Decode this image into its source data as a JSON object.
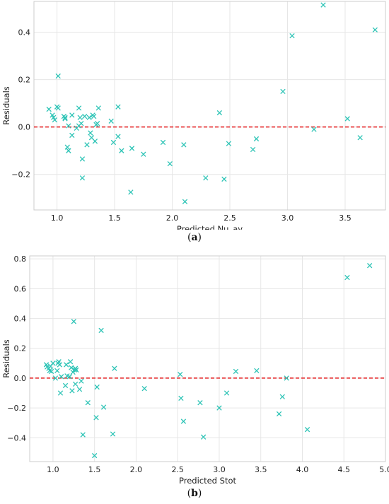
{
  "chart_data": [
    {
      "type": "scatter",
      "panel_label": "a",
      "xlabel": "Predicted Nu_av",
      "ylabel": "Residuals",
      "xlim": [
        0.8,
        3.85
      ],
      "ylim": [
        -0.35,
        0.53
      ],
      "xticks": [
        "1.0",
        "1.5",
        "2.0",
        "2.5",
        "3.0",
        "3.5"
      ],
      "xtick_values": [
        1.0,
        1.5,
        2.0,
        2.5,
        3.0,
        3.5
      ],
      "yticks": [
        "−0.2",
        "0.0",
        "0.2",
        "0.4"
      ],
      "ytick_values": [
        -0.2,
        0.0,
        0.2,
        0.4
      ],
      "grid": true,
      "marker": "x",
      "marker_color": "#2ec4b6",
      "reference_line": {
        "y": 0.0,
        "style": "dashed",
        "color": "#e31a1c"
      },
      "points": [
        [
          0.93,
          0.075
        ],
        [
          0.96,
          0.05
        ],
        [
          0.97,
          0.04
        ],
        [
          0.98,
          0.03
        ],
        [
          1.0,
          0.085
        ],
        [
          1.01,
          0.215
        ],
        [
          1.01,
          0.08
        ],
        [
          1.06,
          0.045
        ],
        [
          1.07,
          0.035
        ],
        [
          1.07,
          0.04
        ],
        [
          1.09,
          -0.085
        ],
        [
          1.1,
          -0.1
        ],
        [
          1.1,
          0.005
        ],
        [
          1.13,
          0.05
        ],
        [
          1.13,
          -0.035
        ],
        [
          1.17,
          -0.005
        ],
        [
          1.19,
          0.08
        ],
        [
          1.19,
          0.005
        ],
        [
          1.2,
          0.04
        ],
        [
          1.21,
          0.015
        ],
        [
          1.22,
          -0.215
        ],
        [
          1.22,
          -0.135
        ],
        [
          1.24,
          0.045
        ],
        [
          1.26,
          -0.075
        ],
        [
          1.28,
          0.04
        ],
        [
          1.29,
          -0.025
        ],
        [
          1.3,
          -0.045
        ],
        [
          1.31,
          0.05
        ],
        [
          1.32,
          0.045
        ],
        [
          1.33,
          -0.06
        ],
        [
          1.34,
          0.01
        ],
        [
          1.35,
          0.015
        ],
        [
          1.36,
          0.08
        ],
        [
          1.47,
          0.025
        ],
        [
          1.49,
          -0.065
        ],
        [
          1.53,
          -0.04
        ],
        [
          1.53,
          0.085
        ],
        [
          1.56,
          -0.1
        ],
        [
          1.64,
          -0.275
        ],
        [
          1.65,
          -0.09
        ],
        [
          1.75,
          -0.115
        ],
        [
          1.92,
          -0.065
        ],
        [
          1.98,
          -0.155
        ],
        [
          2.1,
          -0.075
        ],
        [
          2.11,
          -0.315
        ],
        [
          2.29,
          -0.215
        ],
        [
          2.41,
          0.06
        ],
        [
          2.45,
          -0.22
        ],
        [
          2.49,
          -0.07
        ],
        [
          2.7,
          -0.095
        ],
        [
          2.73,
          -0.05
        ],
        [
          2.96,
          0.15
        ],
        [
          3.04,
          0.385
        ],
        [
          3.23,
          -0.01
        ],
        [
          3.31,
          0.515
        ],
        [
          3.52,
          0.035
        ],
        [
          3.63,
          -0.045
        ],
        [
          3.76,
          0.41
        ]
      ]
    },
    {
      "type": "scatter",
      "panel_label": "b",
      "xlabel": "Predicted Stot",
      "ylabel": "Residuals",
      "xlim": [
        0.72,
        5.0
      ],
      "ylim": [
        -0.56,
        0.82
      ],
      "xticks": [
        "1.0",
        "1.5",
        "2.0",
        "2.5",
        "3.0",
        "3.5",
        "4.0",
        "4.5",
        "5.0"
      ],
      "xtick_values": [
        1.0,
        1.5,
        2.0,
        2.5,
        3.0,
        3.5,
        4.0,
        4.5,
        5.0
      ],
      "yticks": [
        "−0.4",
        "−0.2",
        "0.0",
        "0.2",
        "0.4",
        "0.6",
        "0.8"
      ],
      "ytick_values": [
        -0.4,
        -0.2,
        0.0,
        0.2,
        0.4,
        0.6,
        0.8
      ],
      "grid": true,
      "marker": "x",
      "marker_color": "#2ec4b6",
      "reference_line": {
        "y": 0.0,
        "style": "dashed",
        "color": "#e31a1c"
      },
      "points": [
        [
          0.92,
          0.09
        ],
        [
          0.93,
          0.075
        ],
        [
          0.95,
          0.065
        ],
        [
          0.96,
          0.05
        ],
        [
          0.97,
          0.08
        ],
        [
          0.98,
          0.045
        ],
        [
          1.0,
          0.1
        ],
        [
          1.03,
          0.0
        ],
        [
          1.05,
          0.05
        ],
        [
          1.06,
          0.1
        ],
        [
          1.07,
          0.11
        ],
        [
          1.08,
          0.09
        ],
        [
          1.09,
          -0.1
        ],
        [
          1.1,
          0.01
        ],
        [
          1.15,
          -0.05
        ],
        [
          1.16,
          0.09
        ],
        [
          1.17,
          0.015
        ],
        [
          1.2,
          0.01
        ],
        [
          1.21,
          0.11
        ],
        [
          1.22,
          0.07
        ],
        [
          1.23,
          -0.085
        ],
        [
          1.24,
          0.04
        ],
        [
          1.25,
          0.38
        ],
        [
          1.26,
          0.055
        ],
        [
          1.27,
          0.065
        ],
        [
          1.28,
          0.055
        ],
        [
          1.27,
          -0.04
        ],
        [
          1.32,
          -0.075
        ],
        [
          1.34,
          -0.02
        ],
        [
          1.36,
          -0.38
        ],
        [
          1.42,
          -0.165
        ],
        [
          1.5,
          -0.52
        ],
        [
          1.52,
          -0.265
        ],
        [
          1.53,
          -0.06
        ],
        [
          1.58,
          0.32
        ],
        [
          1.61,
          -0.195
        ],
        [
          1.72,
          -0.375
        ],
        [
          1.74,
          0.065
        ],
        [
          2.1,
          -0.07
        ],
        [
          2.53,
          0.025
        ],
        [
          2.54,
          -0.135
        ],
        [
          2.57,
          -0.29
        ],
        [
          2.77,
          -0.165
        ],
        [
          2.81,
          -0.395
        ],
        [
          3.0,
          -0.2
        ],
        [
          3.09,
          -0.1
        ],
        [
          3.2,
          0.045
        ],
        [
          3.45,
          0.05
        ],
        [
          3.72,
          -0.24
        ],
        [
          3.76,
          -0.125
        ],
        [
          3.81,
          0.0
        ],
        [
          4.06,
          -0.345
        ],
        [
          4.54,
          0.675
        ],
        [
          4.81,
          0.755
        ]
      ]
    }
  ]
}
